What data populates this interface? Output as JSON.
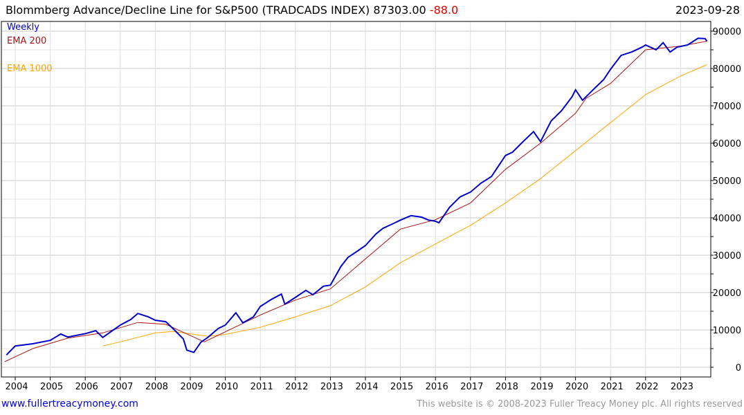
{
  "title": {
    "text": "Blommberg Advance/Decline Line for S&P500 (TRADCADS INDEX) 87303.00",
    "change": "-88.0",
    "date": "2023-09-28"
  },
  "footer": {
    "left": "www.fullertreacymoney.com",
    "right": "This website is © 2008-2023 Fuller Treacy Money plc. All rights reserved"
  },
  "colors": {
    "weekly": "#0000cc",
    "ema200": "#aa1111",
    "ema1000": "#ffa500",
    "change": "#e00000"
  },
  "chart_data": {
    "type": "line",
    "title": "Blommberg Advance/Decline Line for S&P500 (TRADCADS INDEX)",
    "xlim": [
      2003.7,
      2023.85
    ],
    "ylim": [
      -2500,
      92000
    ],
    "x_ticks": [
      "2004",
      "2005",
      "2006",
      "2007",
      "2008",
      "2009",
      "2010",
      "2011",
      "2012",
      "2013",
      "2014",
      "2015",
      "2016",
      "2017",
      "2018",
      "2019",
      "2020",
      "2021",
      "2022",
      "2023"
    ],
    "y_ticks": [
      "0",
      "10000",
      "20000",
      "30000",
      "40000",
      "50000",
      "60000",
      "70000",
      "80000",
      "90000"
    ],
    "grid": true,
    "legend_position": "top-left",
    "series": [
      {
        "name": "Weekly",
        "color": "#0000cc",
        "x": [
          2003.75,
          2004.0,
          2004.5,
          2005.0,
          2005.3,
          2005.5,
          2006.0,
          2006.3,
          2006.5,
          2007.0,
          2007.3,
          2007.5,
          2007.8,
          2008.0,
          2008.3,
          2008.5,
          2008.8,
          2008.9,
          2009.1,
          2009.3,
          2009.5,
          2009.8,
          2010.0,
          2010.3,
          2010.5,
          2010.8,
          2011.0,
          2011.3,
          2011.6,
          2011.7,
          2012.0,
          2012.3,
          2012.5,
          2012.8,
          2013.0,
          2013.3,
          2013.5,
          2013.8,
          2014.0,
          2014.3,
          2014.5,
          2014.8,
          2015.0,
          2015.3,
          2015.6,
          2015.8,
          2016.0,
          2016.1,
          2016.4,
          2016.7,
          2017.0,
          2017.3,
          2017.6,
          2018.0,
          2018.2,
          2018.5,
          2018.8,
          2019.0,
          2019.3,
          2019.6,
          2019.9,
          2020.0,
          2020.2,
          2020.5,
          2020.8,
          2021.0,
          2021.3,
          2021.6,
          2021.9,
          2022.0,
          2022.3,
          2022.5,
          2022.7,
          2022.9,
          2023.2,
          2023.5,
          2023.7,
          2023.75
        ],
        "y": [
          3300,
          5700,
          6300,
          7200,
          8900,
          8100,
          9000,
          9800,
          8000,
          11300,
          12800,
          14400,
          13500,
          12600,
          12200,
          10400,
          7600,
          4600,
          4000,
          6700,
          8000,
          10400,
          11300,
          14600,
          11900,
          13500,
          16300,
          18100,
          19600,
          16900,
          18700,
          20600,
          19400,
          21700,
          22000,
          27000,
          29400,
          31300,
          32600,
          35700,
          37200,
          38500,
          39400,
          40600,
          40200,
          39400,
          39100,
          38700,
          42800,
          45600,
          46900,
          49300,
          51100,
          56700,
          57600,
          60400,
          63100,
          60400,
          65900,
          68700,
          72400,
          74300,
          71500,
          74300,
          77000,
          79800,
          83500,
          84400,
          85700,
          86300,
          85000,
          86900,
          84400,
          85700,
          86300,
          88100,
          88000,
          87303
        ]
      },
      {
        "name": "EMA 200",
        "color": "#aa1111",
        "x": [
          2003.7,
          2004.5,
          2005.5,
          2006.5,
          2007.5,
          2008.3,
          2009.0,
          2009.4,
          2010,
          2011,
          2012,
          2013,
          2014,
          2015,
          2016,
          2017,
          2018,
          2019,
          2020,
          2020.3,
          2021,
          2022,
          2023,
          2023.75
        ],
        "y": [
          1500,
          5000,
          7800,
          9200,
          12000,
          11500,
          8500,
          6800,
          9500,
          14000,
          18000,
          21000,
          29000,
          37000,
          39500,
          44000,
          53000,
          60000,
          68000,
          72000,
          76000,
          85000,
          86000,
          87300
        ]
      },
      {
        "name": "EMA 1000",
        "color": "#ffa500",
        "x": [
          2006.5,
          2007,
          2008,
          2008.5,
          2009.5,
          2010,
          2011,
          2012,
          2013,
          2014,
          2015,
          2016,
          2017,
          2018,
          2019,
          2020,
          2021,
          2022,
          2023,
          2023.75
        ],
        "y": [
          5700,
          6800,
          9200,
          9600,
          8300,
          8800,
          10700,
          13500,
          16500,
          21500,
          28000,
          33000,
          38000,
          44000,
          50500,
          58000,
          65500,
          73000,
          78000,
          81000
        ]
      }
    ]
  }
}
